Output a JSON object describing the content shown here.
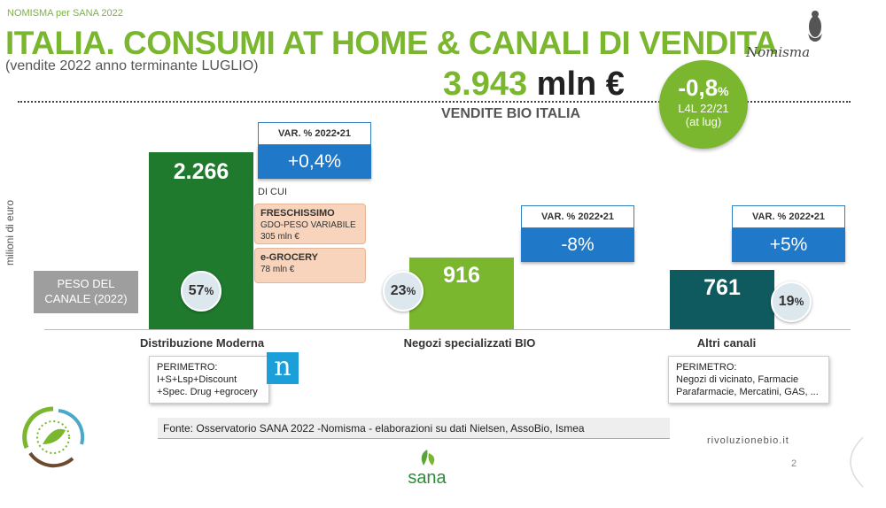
{
  "header": {
    "source_tag": "NOMISMA per SANA 2022",
    "title": "ITALIA. CONSUMI AT HOME & CANALI DI VENDITA",
    "subtitle": "(vendite 2022 anno terminante LUGLIO)",
    "logo_text": "Nomisma"
  },
  "total": {
    "value": "3.943",
    "unit": "mln €",
    "label": "VENDITE BIO ITALIA"
  },
  "l4l": {
    "value": "-0,8",
    "unit": "%",
    "note_line1": "L4L 22/21",
    "note_line2": "(at lug)"
  },
  "chart_data": {
    "type": "bar",
    "ylabel": "milioni di euro",
    "categories": [
      "Distribuzione Moderna",
      "Negozi specializzati BIO",
      "Altri canali"
    ],
    "values": [
      2266,
      916,
      761
    ],
    "value_labels": [
      "2.266",
      "916",
      "761"
    ],
    "shares": [
      "57",
      "23",
      "19"
    ],
    "share_unit": "%",
    "colors": [
      "#1f7a2e",
      "#7ab72f",
      "#0f5a5e"
    ],
    "var_header": "VAR. % 2022•21",
    "var_values": [
      "+0,4%",
      "-8%",
      "+5%"
    ],
    "ylim": [
      0,
      2500
    ]
  },
  "peso_label_line1": "PESO DEL",
  "peso_label_line2": "CANALE (2022)",
  "gdo_detail": {
    "di_cui": "DI CUI",
    "freschissimo_title": "FRESCHISSIMO",
    "freschissimo_sub": "GDO-PESO VARIABILE",
    "freschissimo_value": "305 mln €",
    "egrocery_title": "e-GROCERY",
    "egrocery_value": "78 mln €"
  },
  "perimeter_gdo": {
    "title": "PERIMETRO:",
    "line1": "I+S+Lsp+Discount",
    "line2": "+Spec. Drug +egrocery"
  },
  "perimeter_other": {
    "title": "PERIMETRO:",
    "line1": "Negozi di vicinato, Farmacie",
    "line2": "Parafarmacie, Mercatini, GAS, ..."
  },
  "nielsen_logo_letter": "n",
  "source_note": "Fonte: Osservatorio SANA 2022 -Nomisma -  elaborazioni su dati Nielsen, AssoBio, Ismea",
  "site": "rivoluzionebio.it",
  "page_number": "2",
  "sana_logo_text": "sana"
}
